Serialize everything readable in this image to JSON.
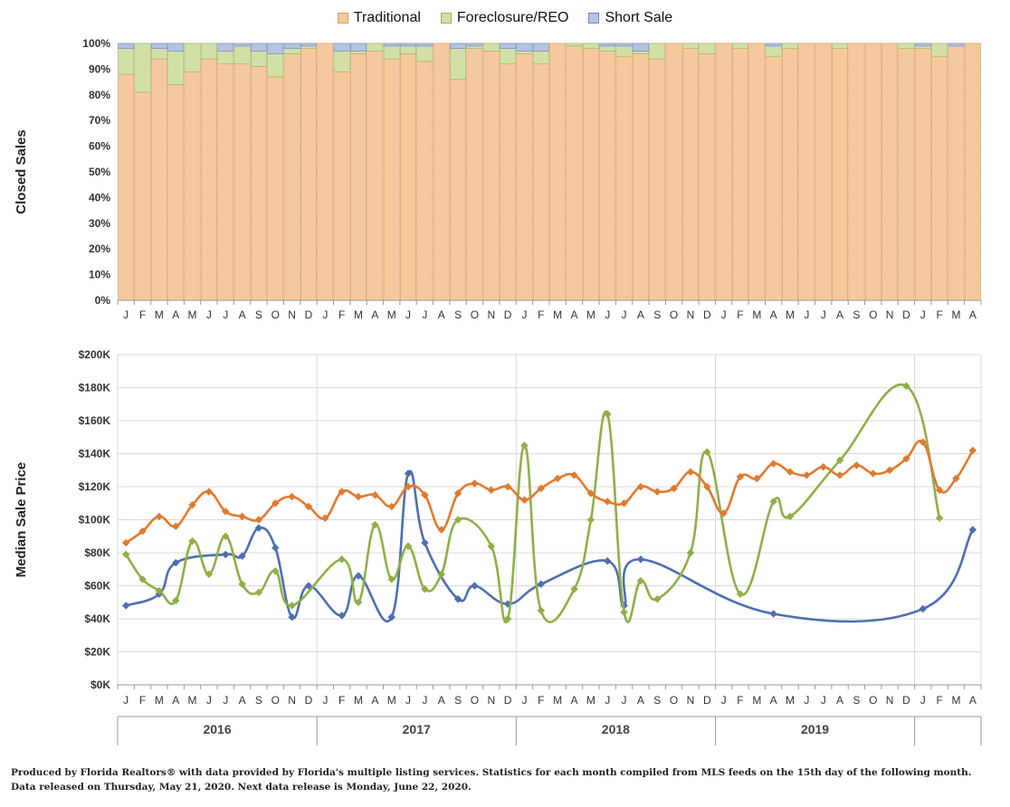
{
  "legend": [
    {
      "label": "Traditional",
      "color": "#F5C99E",
      "border": "#D89A60"
    },
    {
      "label": "Foreclosure/REO",
      "color": "#D2E0A8",
      "border": "#9BB35A"
    },
    {
      "label": "Short Sale",
      "color": "#B4C3E2",
      "border": "#6F84B8"
    }
  ],
  "colors": {
    "traditional_line": "#E07A2E",
    "reo_line": "#8FAF46",
    "short_line": "#4E6FAE",
    "grid": "#d9d9d9",
    "axis": "#999999"
  },
  "footer": {
    "line1": "Produced by Florida Realtors® with data provided by Florida's multiple listing services. Statistics for each month compiled from MLS feeds on the 15th day of the following month.",
    "line2": "Data released on Thursday, May 21, 2020. Next data release is Monday, June 22, 2020."
  },
  "chart_data": [
    {
      "type": "bar",
      "stacked": true,
      "ylabel": "Closed Sales",
      "ylim": [
        0,
        100
      ],
      "y_ticks": [
        "0%",
        "10%",
        "20%",
        "30%",
        "40%",
        "50%",
        "60%",
        "70%",
        "80%",
        "90%",
        "100%"
      ],
      "month_labels": [
        "J",
        "F",
        "M",
        "A",
        "M",
        "J",
        "J",
        "A",
        "S",
        "O",
        "N",
        "D",
        "J",
        "F",
        "M",
        "A",
        "M",
        "J",
        "J",
        "A",
        "S",
        "O",
        "N",
        "D",
        "J",
        "F",
        "M",
        "A",
        "M",
        "J",
        "J",
        "A",
        "S",
        "O",
        "N",
        "D",
        "J",
        "F",
        "M",
        "A",
        "M",
        "J",
        "J",
        "A",
        "S",
        "O",
        "N",
        "D",
        "J",
        "F",
        "M",
        "A"
      ],
      "series": [
        {
          "name": "Traditional",
          "values": [
            88,
            81,
            94,
            84,
            89,
            94,
            92,
            92,
            91,
            87,
            96,
            98,
            100,
            89,
            96,
            97,
            94,
            96,
            93,
            100,
            86,
            98,
            97,
            92,
            96,
            92,
            100,
            99,
            98,
            97,
            95,
            96,
            94,
            100,
            98,
            96,
            100,
            98,
            100,
            95,
            98,
            100,
            100,
            98,
            100,
            100,
            100,
            98,
            98,
            95,
            99,
            100
          ]
        },
        {
          "name": "Foreclosure/REO",
          "values": [
            10,
            19,
            4,
            13,
            11,
            6,
            5,
            7,
            6,
            9,
            2,
            1,
            0,
            8,
            1,
            3,
            5,
            3,
            6,
            0,
            12,
            1,
            3,
            6,
            1,
            5,
            0,
            1,
            2,
            2,
            4,
            1,
            6,
            0,
            2,
            4,
            0,
            2,
            0,
            4,
            2,
            0,
            0,
            2,
            0,
            0,
            0,
            2,
            1,
            5,
            0,
            0
          ]
        },
        {
          "name": "Short Sale",
          "values": [
            2,
            0,
            2,
            3,
            0,
            0,
            3,
            1,
            3,
            4,
            2,
            1,
            0,
            3,
            3,
            0,
            1,
            1,
            1,
            0,
            2,
            1,
            0,
            2,
            3,
            3,
            0,
            0,
            0,
            1,
            1,
            3,
            0,
            0,
            0,
            0,
            0,
            0,
            0,
            1,
            0,
            0,
            0,
            0,
            0,
            0,
            0,
            0,
            1,
            0,
            1,
            0
          ]
        }
      ]
    },
    {
      "type": "line",
      "ylabel": "Median Sale Price",
      "ylim": [
        0,
        200000
      ],
      "y_ticks": [
        "$0K",
        "$20K",
        "$40K",
        "$60K",
        "$80K",
        "$100K",
        "$120K",
        "$140K",
        "$160K",
        "$180K",
        "$200K"
      ],
      "month_labels": [
        "J",
        "F",
        "M",
        "A",
        "M",
        "J",
        "J",
        "A",
        "S",
        "O",
        "N",
        "D",
        "J",
        "F",
        "M",
        "A",
        "M",
        "J",
        "J",
        "A",
        "S",
        "O",
        "N",
        "D",
        "J",
        "F",
        "M",
        "A",
        "M",
        "J",
        "J",
        "A",
        "S",
        "O",
        "N",
        "D",
        "J",
        "F",
        "M",
        "A",
        "M",
        "J",
        "J",
        "A",
        "S",
        "O",
        "N",
        "D",
        "J",
        "F",
        "M",
        "A"
      ],
      "year_labels": [
        "2016",
        "2017",
        "2018",
        "2019"
      ],
      "series": [
        {
          "name": "Traditional",
          "values": [
            86000,
            93000,
            102000,
            96000,
            109000,
            117000,
            105000,
            102000,
            100000,
            110000,
            114000,
            108000,
            101000,
            117000,
            114000,
            115000,
            108000,
            120000,
            115000,
            94000,
            116000,
            122000,
            118000,
            120000,
            112000,
            119000,
            125000,
            127000,
            116000,
            111000,
            110000,
            120000,
            117000,
            119000,
            129000,
            120000,
            104000,
            126000,
            125000,
            134000,
            129000,
            127000,
            132000,
            127000,
            133000,
            128000,
            130000,
            137000,
            147000,
            118000,
            125000,
            142000
          ]
        },
        {
          "name": "Foreclosure/REO",
          "values": [
            79000,
            64000,
            57000,
            51000,
            87000,
            67000,
            90000,
            61000,
            56000,
            69000,
            48000,
            null,
            null,
            76000,
            50000,
            97000,
            64000,
            84000,
            58000,
            67000,
            100000,
            null,
            84000,
            40000,
            145000,
            45000,
            null,
            58000,
            100000,
            164000,
            44000,
            63000,
            52000,
            null,
            80000,
            141000,
            null,
            55000,
            null,
            111000,
            102000,
            null,
            null,
            136000,
            null,
            null,
            null,
            181000,
            null,
            101000,
            null,
            null
          ]
        },
        {
          "name": "Short Sale",
          "values": [
            48000,
            null,
            55000,
            74000,
            null,
            null,
            79000,
            78000,
            95000,
            83000,
            41000,
            60000,
            null,
            42000,
            66000,
            null,
            41000,
            128000,
            86000,
            null,
            52000,
            60000,
            null,
            49000,
            null,
            61000,
            null,
            null,
            null,
            75000,
            48000,
            76000,
            null,
            null,
            null,
            null,
            null,
            null,
            null,
            43000,
            null,
            null,
            null,
            null,
            null,
            null,
            null,
            null,
            46000,
            null,
            null,
            94000
          ]
        }
      ]
    }
  ]
}
